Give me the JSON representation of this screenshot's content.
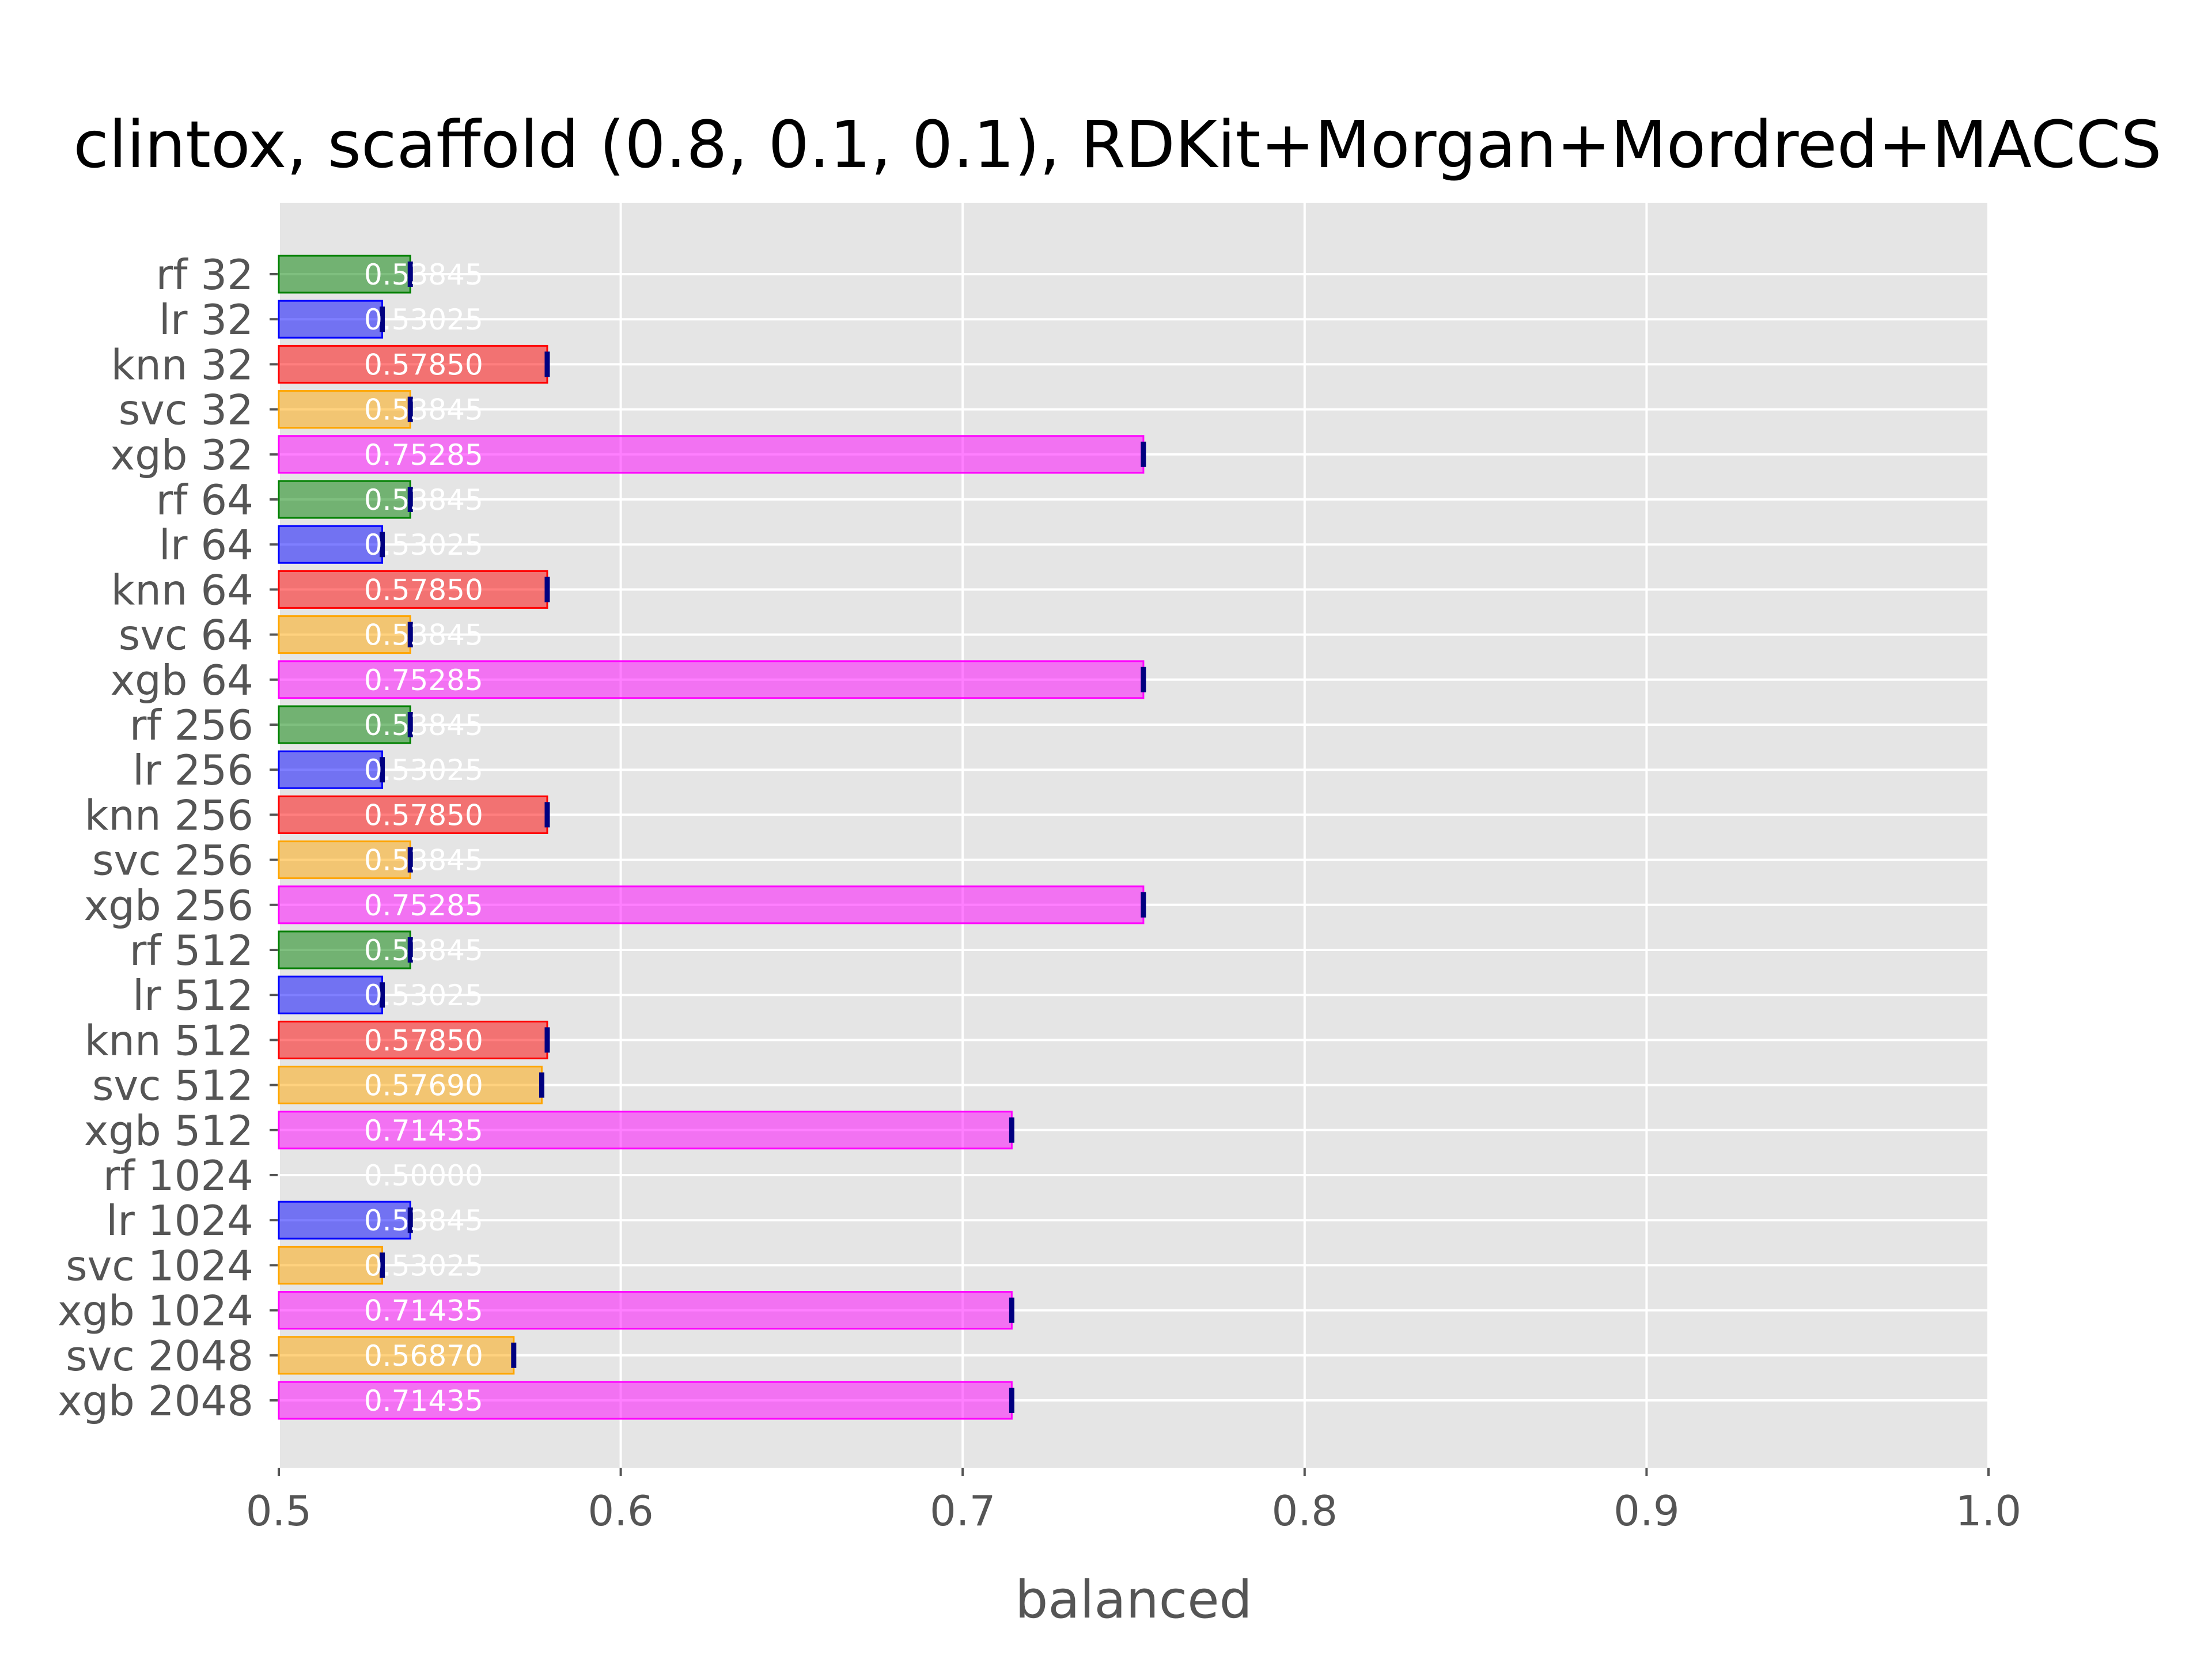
{
  "chart_data": {
    "type": "bar",
    "orientation": "horizontal",
    "title": "clintox, scaffold (0.8, 0.1, 0.1), RDKit+Morgan+Mordred+MACCS",
    "xlabel": "balanced",
    "ylabel": "",
    "xlim": [
      0.5,
      1.0
    ],
    "xticks": [
      "0.5",
      "0.6",
      "0.7",
      "0.8",
      "0.9",
      "1.0"
    ],
    "grid": true,
    "colors": {
      "rf": "#008000",
      "lr": "#0000ff",
      "knn": "#ff0000",
      "svc": "#ffa500",
      "xgb": "#ff00ff",
      "error_bar": "#000080",
      "background": "#e5e5e5"
    },
    "categories": [
      "rf 32",
      "lr 32",
      "knn 32",
      "svc 32",
      "xgb 32",
      "rf 64",
      "lr 64",
      "knn 64",
      "svc 64",
      "xgb 64",
      "rf 256",
      "lr 256",
      "knn 256",
      "svc 256",
      "xgb 256",
      "rf 512",
      "lr 512",
      "knn 512",
      "svc 512",
      "xgb 512",
      "rf 1024",
      "lr 1024",
      "svc 1024",
      "xgb 1024",
      "svc 2048",
      "xgb 2048"
    ],
    "values": [
      0.53845,
      0.53025,
      0.5785,
      0.53845,
      0.75285,
      0.53845,
      0.53025,
      0.5785,
      0.53845,
      0.75285,
      0.53845,
      0.53025,
      0.5785,
      0.53845,
      0.75285,
      0.53845,
      0.53025,
      0.5785,
      0.5769,
      0.71435,
      0.5,
      0.53845,
      0.53025,
      0.71435,
      0.5687,
      0.71435
    ],
    "labels": [
      "0.53845",
      "0.53025",
      "0.57850",
      "0.53845",
      "0.75285",
      "0.53845",
      "0.53025",
      "0.57850",
      "0.53845",
      "0.75285",
      "0.53845",
      "0.53025",
      "0.57850",
      "0.53845",
      "0.75285",
      "0.53845",
      "0.53025",
      "0.57850",
      "0.57690",
      "0.71435",
      "0.50000",
      "0.53845",
      "0.53025",
      "0.71435",
      "0.56870",
      "0.71435"
    ],
    "bar_colors": [
      "rf",
      "lr",
      "knn",
      "svc",
      "xgb",
      "rf",
      "lr",
      "knn",
      "svc",
      "xgb",
      "rf",
      "lr",
      "knn",
      "svc",
      "xgb",
      "rf",
      "lr",
      "knn",
      "svc",
      "xgb",
      "rf",
      "lr",
      "svc",
      "xgb",
      "svc",
      "xgb"
    ]
  }
}
